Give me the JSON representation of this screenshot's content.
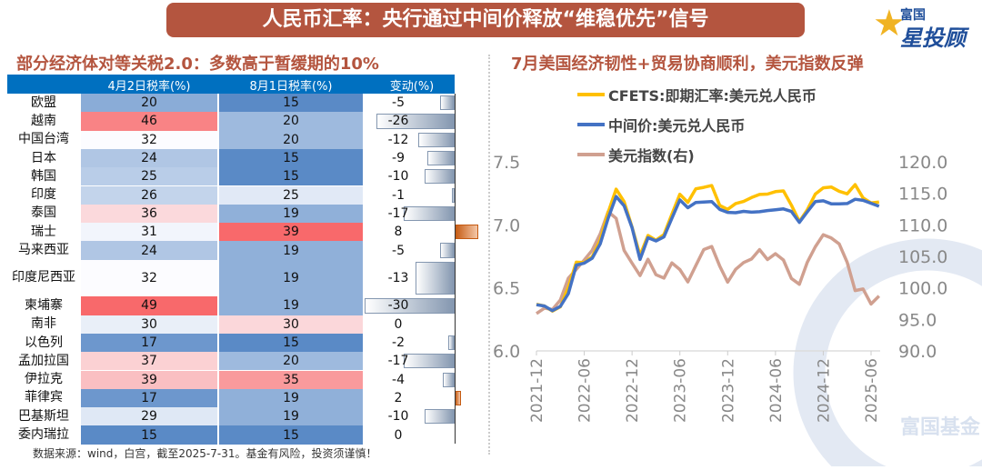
{
  "title": "人民币汇率：央行通过中间价释放“维稳优先”信号",
  "logo": {
    "line1": "富国",
    "line2": "星投顾"
  },
  "watermark": "富国基金",
  "left_subtitle": "部分经济体对等关税2.0：多数高于暂缓期的10%",
  "right_subtitle": "7月美国经济韧性+贸易协商顺利，美元指数反弹",
  "footer": "数据来源：wind，白宫，截至2025-7-31。基金有风险，投资须谨慎！",
  "chart_data": [
    {
      "type": "table",
      "headers": [
        "",
        "4月2日税率(%)",
        "8月1日税率(%)",
        "变动(%)"
      ],
      "rows": [
        [
          "欧盟",
          20,
          15,
          -5
        ],
        [
          "越南",
          46,
          20,
          -26
        ],
        [
          "中国台湾",
          32,
          20,
          -12
        ],
        [
          "日本",
          24,
          15,
          -9
        ],
        [
          "韩国",
          25,
          15,
          -10
        ],
        [
          "印度",
          26,
          25,
          -1
        ],
        [
          "泰国",
          36,
          19,
          -17
        ],
        [
          "瑞士",
          31,
          39,
          8
        ],
        [
          "马来西亚",
          24,
          19,
          -5
        ],
        [
          "印度尼西亚",
          32,
          19,
          -13
        ],
        [
          "柬埔寨",
          49,
          19,
          -30
        ],
        [
          "南非",
          30,
          30,
          0
        ],
        [
          "以色列",
          17,
          15,
          -2
        ],
        [
          "孟加拉国",
          37,
          20,
          -17
        ],
        [
          "伊拉克",
          39,
          35,
          -4
        ],
        [
          "菲律宾",
          17,
          19,
          2
        ],
        [
          "巴基斯坦",
          29,
          19,
          -10
        ],
        [
          "委内瑞拉",
          15,
          15,
          0
        ]
      ],
      "colors": {
        "low": "#5a8ac6",
        "mid": "#fcfcff",
        "high": "#f8696b",
        "neg_bar": "#8497b0",
        "pos_bar": "#c55a11"
      }
    },
    {
      "type": "line",
      "x": [
        "2021-12",
        "2022-01",
        "2022-02",
        "2022-03",
        "2022-04",
        "2022-05",
        "2022-06",
        "2022-07",
        "2022-08",
        "2022-09",
        "2022-10",
        "2022-11",
        "2022-12",
        "2023-01",
        "2023-02",
        "2023-03",
        "2023-04",
        "2023-05",
        "2023-06",
        "2023-07",
        "2023-08",
        "2023-09",
        "2023-10",
        "2023-11",
        "2023-12",
        "2024-01",
        "2024-02",
        "2024-03",
        "2024-04",
        "2024-05",
        "2024-06",
        "2024-07",
        "2024-08",
        "2024-09",
        "2024-10",
        "2024-11",
        "2024-12",
        "2025-01",
        "2025-02",
        "2025-03",
        "2025-04",
        "2025-05",
        "2025-06",
        "2025-07"
      ],
      "xticks": [
        "2021-12",
        "2022-06",
        "2022-12",
        "2023-06",
        "2023-12",
        "2024-06",
        "2024-12",
        "2025-06"
      ],
      "ylim_left": [
        6.0,
        7.5
      ],
      "yticks_left": [
        "6.0",
        "6.5",
        "7.0",
        "7.5"
      ],
      "ylim_right": [
        90.0,
        120.0
      ],
      "yticks_right": [
        "90.0",
        "95.0",
        "100.0",
        "105.0",
        "110.0",
        "115.0",
        "120.0"
      ],
      "legend": "top-left",
      "series": [
        {
          "name": "CFETS:即期汇率:美元兑人民币",
          "axis": "left",
          "color": "#ffc000",
          "values": [
            6.37,
            6.36,
            6.32,
            6.35,
            6.5,
            6.7,
            6.7,
            6.75,
            6.88,
            7.1,
            7.28,
            7.18,
            6.98,
            6.76,
            6.92,
            6.88,
            6.92,
            7.08,
            7.24,
            7.18,
            7.29,
            7.3,
            7.31,
            7.15,
            7.12,
            7.17,
            7.19,
            7.22,
            7.24,
            7.24,
            7.26,
            7.27,
            7.16,
            7.03,
            7.12,
            7.24,
            7.29,
            7.3,
            7.27,
            7.25,
            7.32,
            7.21,
            7.17,
            7.18
          ]
        },
        {
          "name": "中间价:美元兑人民币",
          "axis": "left",
          "color": "#4472c4",
          "values": [
            6.37,
            6.36,
            6.32,
            6.35,
            6.45,
            6.68,
            6.7,
            6.74,
            6.85,
            7.05,
            7.22,
            7.15,
            6.98,
            6.73,
            6.9,
            6.87,
            6.9,
            7.05,
            7.2,
            7.14,
            7.18,
            7.18,
            7.18,
            7.12,
            7.1,
            7.1,
            7.11,
            7.1,
            7.1,
            7.11,
            7.12,
            7.13,
            7.11,
            7.02,
            7.1,
            7.18,
            7.19,
            7.17,
            7.17,
            7.17,
            7.2,
            7.19,
            7.17,
            7.15
          ]
        },
        {
          "name": "美元指数(右)",
          "axis": "right",
          "color": "#d0a090",
          "values": [
            96.0,
            96.8,
            96.5,
            98.0,
            101.5,
            103.0,
            104.5,
            106.0,
            108.5,
            112.0,
            111.0,
            106.0,
            104.0,
            102.0,
            104.5,
            102.0,
            101.5,
            104.0,
            103.0,
            101.0,
            103.5,
            106.0,
            106.5,
            103.5,
            101.0,
            103.0,
            104.0,
            104.5,
            106.0,
            104.5,
            105.5,
            104.5,
            101.5,
            100.5,
            104.0,
            106.5,
            108.5,
            108.0,
            107.0,
            104.0,
            99.5,
            99.8,
            97.5,
            98.8
          ]
        }
      ]
    }
  ]
}
